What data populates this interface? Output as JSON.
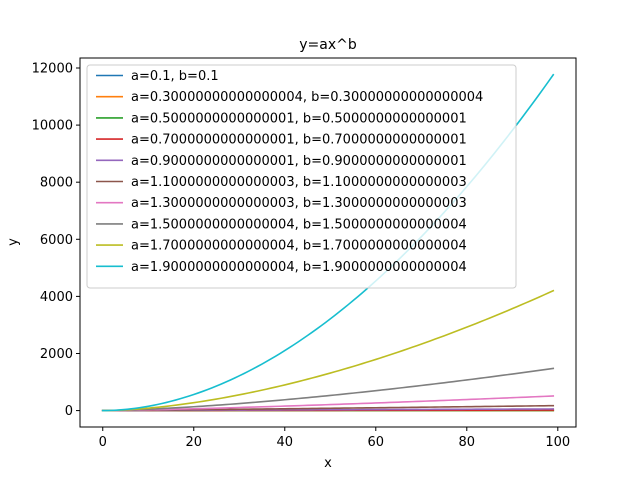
{
  "chart_data": {
    "type": "line",
    "title": "y=ax^b",
    "xlabel": "x",
    "ylabel": "y",
    "xlim": [
      -5,
      104
    ],
    "ylim": [
      -575,
      12350
    ],
    "xticks": [
      0,
      20,
      40,
      60,
      80,
      100
    ],
    "yticks": [
      0,
      2000,
      4000,
      6000,
      8000,
      10000,
      12000
    ],
    "x_range": [
      0,
      99
    ],
    "formula": "y = a * x^b",
    "legend_position": "upper-left",
    "grid": false,
    "series": [
      {
        "name": "a=0.1, b=0.1",
        "a": 0.1,
        "b": 0.1,
        "color": "#1f77b4"
      },
      {
        "name": "a=0.30000000000000004, b=0.30000000000000004",
        "a": 0.30000000000000004,
        "b": 0.30000000000000004,
        "color": "#ff7f0e"
      },
      {
        "name": "a=0.5000000000000001, b=0.5000000000000001",
        "a": 0.5000000000000001,
        "b": 0.5000000000000001,
        "color": "#2ca02c"
      },
      {
        "name": "a=0.7000000000000001, b=0.7000000000000001",
        "a": 0.7000000000000001,
        "b": 0.7000000000000001,
        "color": "#d62728"
      },
      {
        "name": "a=0.9000000000000001, b=0.9000000000000001",
        "a": 0.9000000000000001,
        "b": 0.9000000000000001,
        "color": "#9467bd"
      },
      {
        "name": "a=1.1000000000000003, b=1.1000000000000003",
        "a": 1.1000000000000003,
        "b": 1.1000000000000003,
        "color": "#8c564b"
      },
      {
        "name": "a=1.3000000000000003, b=1.3000000000000003",
        "a": 1.3000000000000003,
        "b": 1.3000000000000003,
        "color": "#e377c2"
      },
      {
        "name": "a=1.5000000000000004, b=1.5000000000000004",
        "a": 1.5000000000000004,
        "b": 1.5000000000000004,
        "color": "#7f7f7f"
      },
      {
        "name": "a=1.7000000000000004, b=1.7000000000000004",
        "a": 1.7000000000000004,
        "b": 1.7000000000000004,
        "color": "#bcbd22"
      },
      {
        "name": "a=1.9000000000000004, b=1.9000000000000004",
        "a": 1.9000000000000004,
        "b": 1.9000000000000004,
        "color": "#17becf"
      }
    ]
  }
}
